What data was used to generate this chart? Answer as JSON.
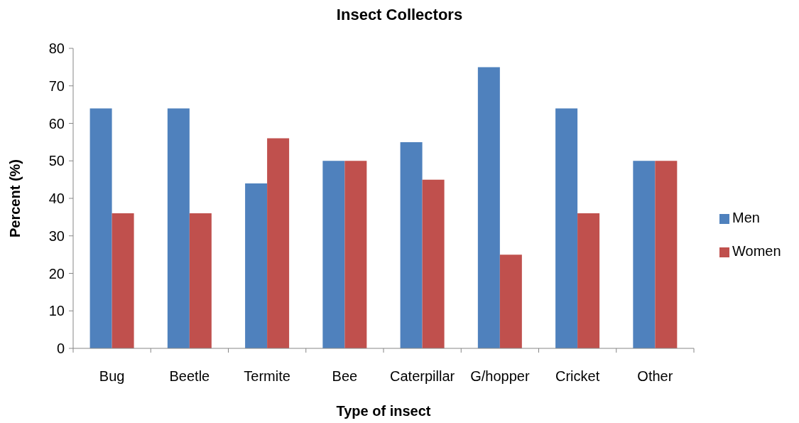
{
  "chart_data": {
    "type": "bar",
    "title": "Insect Collectors",
    "xlabel": "Type of insect",
    "ylabel": "Percent (%)",
    "categories": [
      "Bug",
      "Beetle",
      "Termite",
      "Bee",
      "Caterpillar",
      "G/hopper",
      "Cricket",
      "Other"
    ],
    "series": [
      {
        "name": "Men",
        "color": "#4f81bd",
        "values": [
          64,
          64,
          44,
          50,
          55,
          75,
          64,
          50
        ]
      },
      {
        "name": "Women",
        "color": "#c0504d",
        "values": [
          36,
          36,
          56,
          50,
          45,
          25,
          36,
          50
        ]
      }
    ],
    "ylim": [
      0,
      80
    ],
    "yticks": [
      0,
      10,
      20,
      30,
      40,
      50,
      60,
      70,
      80
    ],
    "legend": "right"
  }
}
